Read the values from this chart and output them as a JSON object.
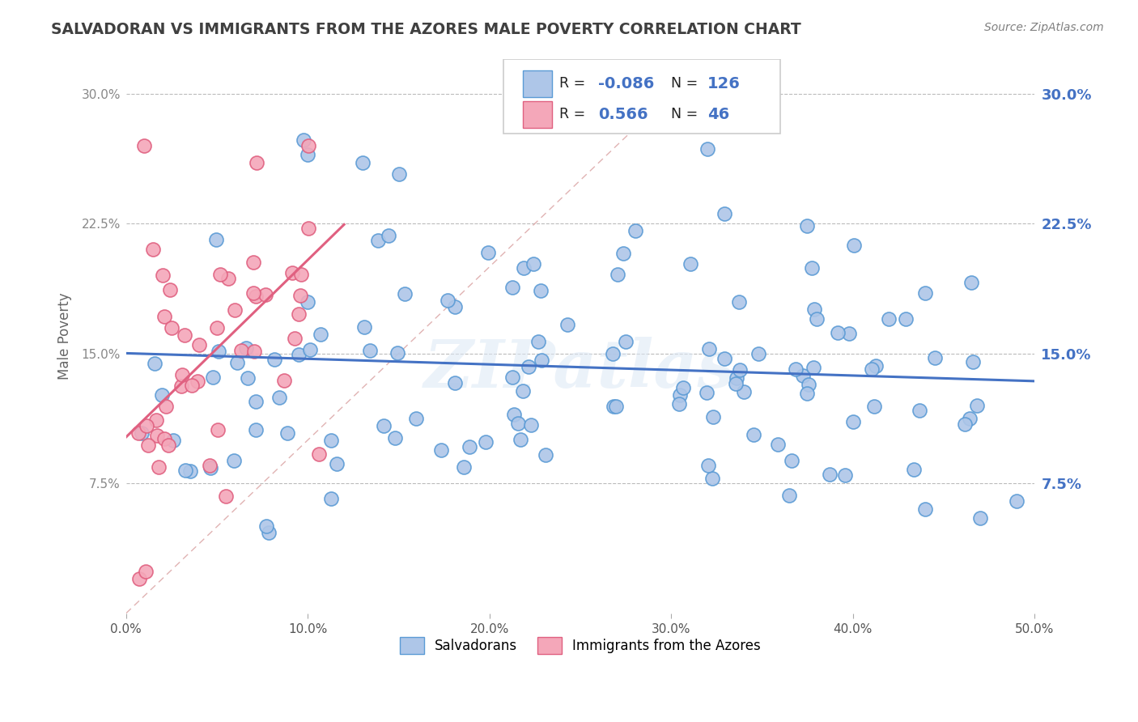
{
  "title": "SALVADORAN VS IMMIGRANTS FROM THE AZORES MALE POVERTY CORRELATION CHART",
  "source": "Source: ZipAtlas.com",
  "ylabel_label": "Male Poverty",
  "xlim": [
    0.0,
    0.5
  ],
  "ylim": [
    0.0,
    0.32
  ],
  "ytick_positions": [
    0.0,
    0.075,
    0.15,
    0.225,
    0.3
  ],
  "ytick_labels": [
    "",
    "7.5%",
    "15.0%",
    "22.5%",
    "30.0%"
  ],
  "xtick_vals": [
    0.0,
    0.1,
    0.2,
    0.3,
    0.4,
    0.5
  ],
  "xtick_labels": [
    "0.0%",
    "10.0%",
    "20.0%",
    "30.0%",
    "40.0%",
    "50.0%"
  ],
  "series1_color": "#aec6e8",
  "series1_edge": "#5b9bd5",
  "series2_color": "#f4a7b9",
  "series2_edge": "#e06080",
  "line1_color": "#4472c4",
  "line2_color": "#e06080",
  "diag_color": "#d9a0a0",
  "R1": -0.086,
  "N1": 126,
  "R2": 0.566,
  "N2": 46,
  "legend1_label": "Salvadorans",
  "legend2_label": "Immigrants from the Azores",
  "watermark": "ZIPatlas",
  "background_color": "#ffffff",
  "grid_color": "#bbbbbb",
  "axis_label_color": "#4472c4",
  "title_color": "#404040",
  "legend_text_color": "#222222",
  "legend_R_color": "#4472c4",
  "legend_N_color": "#4472c4"
}
